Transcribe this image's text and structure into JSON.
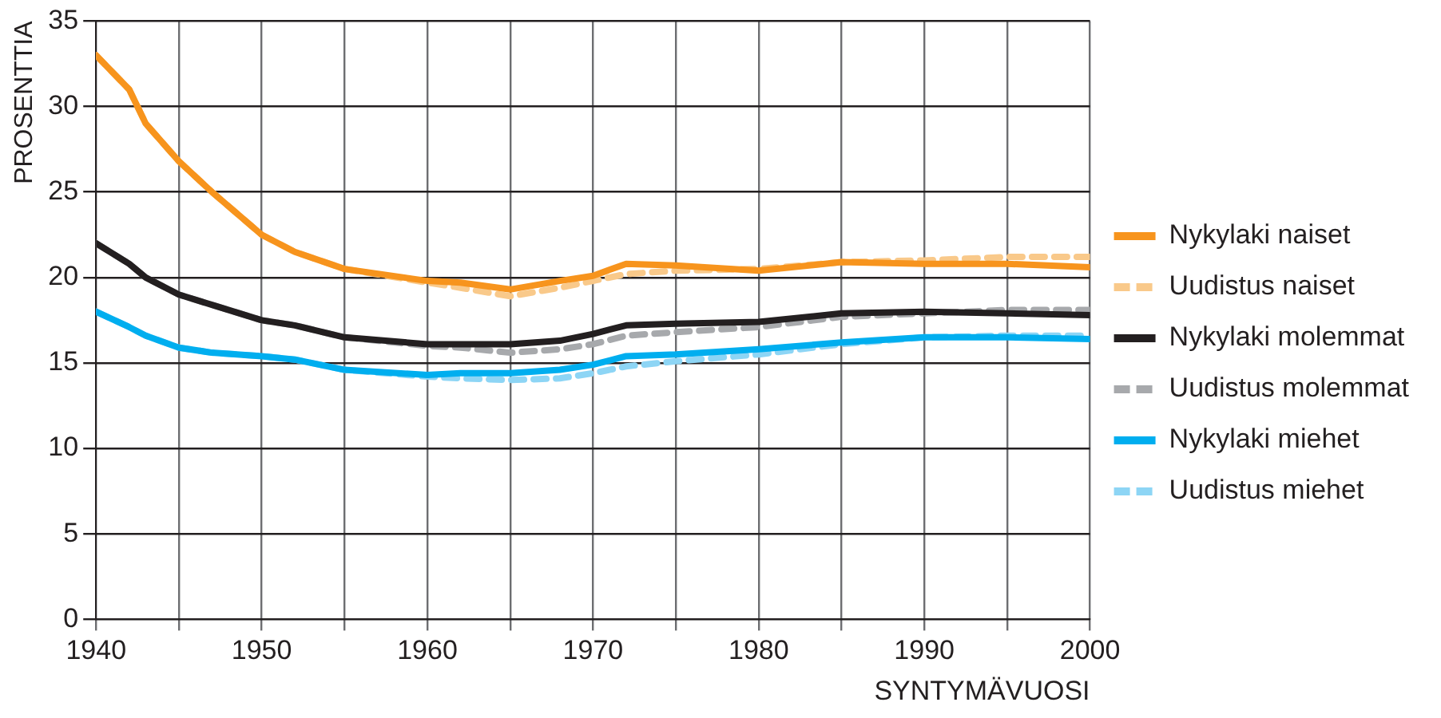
{
  "chart_data": {
    "type": "line",
    "xlabel": "SYNTYMÄVUOSI",
    "ylabel": "PROSENTTIA",
    "x": [
      1940,
      1942,
      1943,
      1945,
      1947,
      1950,
      1952,
      1955,
      1960,
      1962,
      1965,
      1968,
      1970,
      1972,
      1975,
      1980,
      1985,
      1990,
      1995,
      2000
    ],
    "xlim": [
      1940,
      2000
    ],
    "xticks": [
      1940,
      {
        "value": 1945,
        "label": null
      },
      1950,
      {
        "value": 1955,
        "label": null
      },
      1960,
      {
        "value": 1965,
        "label": null
      },
      1970,
      {
        "value": 1975,
        "label": null
      },
      1980,
      {
        "value": 1985,
        "label": null
      },
      1990,
      {
        "value": 1995,
        "label": null
      },
      2000
    ],
    "ylim": [
      0,
      35
    ],
    "yticks": [
      0,
      5,
      10,
      15,
      20,
      25,
      30,
      35
    ],
    "grid": true,
    "legend": "right",
    "marker": "none",
    "series": [
      {
        "name": "Nykylaki naiset",
        "color": "#f7941d",
        "line_style": "solid",
        "values": [
          33,
          31,
          29,
          26.8,
          25,
          22.5,
          21.5,
          20.5,
          19.8,
          19.7,
          19.3,
          19.8,
          20.1,
          20.8,
          20.7,
          20.4,
          20.9,
          20.8,
          20.8,
          20.6
        ]
      },
      {
        "name": "Uudistus naiset",
        "color": "#f9c98a",
        "line_style": "dashed",
        "values": [
          33,
          31,
          29,
          26.8,
          25,
          22.5,
          21.5,
          20.5,
          19.7,
          19.4,
          18.9,
          19.4,
          19.8,
          20.2,
          20.4,
          20.5,
          20.9,
          21.0,
          21.2,
          21.2
        ]
      },
      {
        "name": "Nykylaki molemmat",
        "color": "#231f20",
        "line_style": "solid",
        "values": [
          22,
          20.8,
          20,
          19,
          18.4,
          17.5,
          17.2,
          16.5,
          16.1,
          16.1,
          16.1,
          16.3,
          16.7,
          17.2,
          17.3,
          17.4,
          17.9,
          18.0,
          17.9,
          17.8
        ]
      },
      {
        "name": "Uudistus molemmat",
        "color": "#a7a9ac",
        "line_style": "dashed",
        "values": [
          22,
          20.8,
          20,
          19,
          18.4,
          17.5,
          17.2,
          16.5,
          16.0,
          15.9,
          15.6,
          15.8,
          16.1,
          16.6,
          16.8,
          17.1,
          17.7,
          17.9,
          18.1,
          18.1
        ]
      },
      {
        "name": "Nykylaki miehet",
        "color": "#00aeef",
        "line_style": "solid",
        "values": [
          18,
          17.1,
          16.6,
          15.9,
          15.6,
          15.4,
          15.2,
          14.6,
          14.3,
          14.4,
          14.4,
          14.6,
          14.9,
          15.4,
          15.5,
          15.8,
          16.2,
          16.5,
          16.5,
          16.4
        ]
      },
      {
        "name": "Uudistus miehet",
        "color": "#8dd5f5",
        "line_style": "dashed",
        "values": [
          18,
          17.1,
          16.6,
          15.9,
          15.6,
          15.4,
          15.2,
          14.6,
          14.2,
          14.1,
          14.0,
          14.1,
          14.4,
          14.8,
          15.1,
          15.5,
          16.1,
          16.5,
          16.6,
          16.6
        ]
      }
    ]
  }
}
